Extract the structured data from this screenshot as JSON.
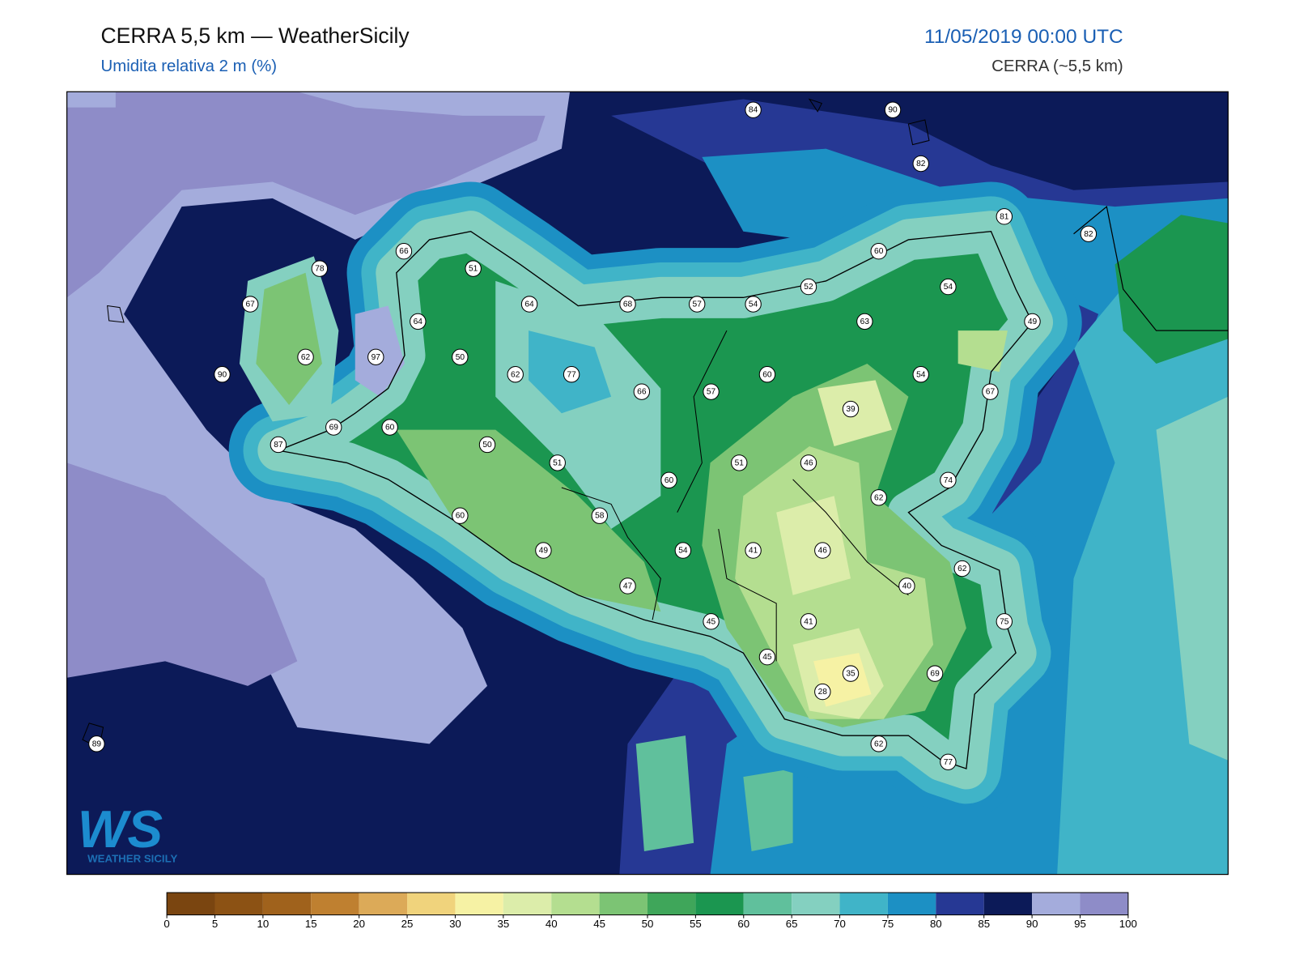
{
  "header": {
    "title": "CERRA 5,5 km — WeatherSicily",
    "subtitle": "Umidita relativa 2 m (%)",
    "datetime": "11/05/2019 00:00 UTC",
    "model": "CERRA (~5,5 km)"
  },
  "logo": {
    "mark": "WS",
    "name": "WEATHER SICILY"
  },
  "stations": [
    84,
    90,
    82,
    81,
    82,
    66,
    51,
    60,
    78,
    52,
    54,
    67,
    64,
    68,
    57,
    54,
    63,
    49,
    64,
    62,
    97,
    50,
    62,
    77,
    60,
    54,
    90,
    66,
    57,
    67,
    39,
    69,
    60,
    87,
    50,
    51,
    51,
    46,
    60,
    74,
    62,
    60,
    58,
    49,
    54,
    41,
    46,
    62,
    47,
    40,
    45,
    41,
    75,
    45,
    35,
    69,
    28,
    62,
    77,
    89
  ],
  "colorbar": {
    "ticks": [
      0,
      5,
      10,
      15,
      20,
      25,
      30,
      35,
      40,
      45,
      50,
      55,
      60,
      65,
      70,
      75,
      80,
      85,
      90,
      95,
      100
    ],
    "colors": [
      "#7a4510",
      "#8c5214",
      "#a0621c",
      "#bf8030",
      "#dcaa58",
      "#f0d37c",
      "#f6f2a4",
      "#dcedaa",
      "#b4de90",
      "#7cc474",
      "#3fa65a",
      "#1b9650",
      "#60c09c",
      "#84d0c0",
      "#40b4c8",
      "#1c90c4",
      "#263894",
      "#0c1a58",
      "#a4acdc",
      "#8e8cc8"
    ]
  }
}
